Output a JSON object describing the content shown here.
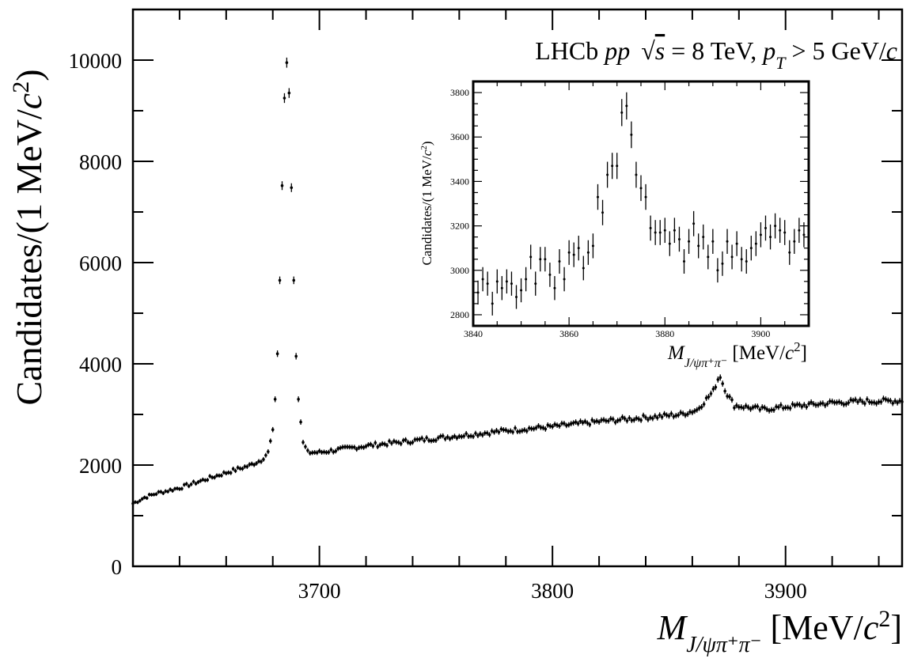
{
  "chart_data": [
    {
      "id": "main",
      "type": "scatter",
      "title": "",
      "annotation": {
        "experiment": "LHCb",
        "collision": "pp",
        "energy_prefix": "√",
        "energy_var": "s",
        "energy_value": " = 8 TeV,",
        "pt_var": "p",
        "pt_sub": "T",
        "pt_value": " > 5 GeV/",
        "pt_unit_var": "c"
      },
      "ylabel": "Candidates/(1 MeV/c 2)",
      "ylabel_parts": {
        "prefix": "Candidates/(1 MeV/",
        "var": "c",
        "sup": "2",
        "suffix": ")"
      },
      "xlabel": "M J/ψπ+π− [MeV/c 2]",
      "xlabel_parts": {
        "var": "M",
        "sub": "J/ψπ⁺π⁻",
        "unit": " [MeV/",
        "unit_var": "c",
        "unit_sup": "2",
        "unit_close": "]"
      },
      "xlim": [
        3620,
        3950
      ],
      "ylim": [
        0,
        11000
      ],
      "x_ticks": [
        3700,
        3800,
        3900
      ],
      "x_tick_labels": [
        "3700",
        "3800",
        "3900"
      ],
      "y_ticks": [
        0,
        2000,
        4000,
        6000,
        8000,
        10000
      ],
      "y_tick_labels": [
        "0",
        "2000",
        "4000",
        "6000",
        "8000",
        "10000"
      ],
      "grid": false,
      "sampled_points": [
        [
          3620,
          1240
        ],
        [
          3625,
          1360
        ],
        [
          3630,
          1440
        ],
        [
          3640,
          1550
        ],
        [
          3650,
          1700
        ],
        [
          3660,
          1850
        ],
        [
          3670,
          1990
        ],
        [
          3675,
          2100
        ],
        [
          3678,
          2250
        ],
        [
          3680,
          2700
        ],
        [
          3681,
          3300
        ],
        [
          3682,
          4200
        ],
        [
          3683,
          5650
        ],
        [
          3684,
          7520
        ],
        [
          3685,
          9250
        ],
        [
          3686,
          9950
        ],
        [
          3687,
          9350
        ],
        [
          3688,
          7480
        ],
        [
          3689,
          5650
        ],
        [
          3690,
          4150
        ],
        [
          3691,
          3300
        ],
        [
          3692,
          2850
        ],
        [
          3693,
          2450
        ],
        [
          3695,
          2250
        ],
        [
          3700,
          2250
        ],
        [
          3720,
          2380
        ],
        [
          3740,
          2480
        ],
        [
          3760,
          2580
        ],
        [
          3780,
          2680
        ],
        [
          3800,
          2760
        ],
        [
          3820,
          2860
        ],
        [
          3840,
          2940
        ],
        [
          3855,
          3000
        ],
        [
          3862,
          3090
        ],
        [
          3866,
          3300
        ],
        [
          3869,
          3460
        ],
        [
          3871,
          3700
        ],
        [
          3872,
          3760
        ],
        [
          3873,
          3620
        ],
        [
          3875,
          3400
        ],
        [
          3878,
          3180
        ],
        [
          3890,
          3100
        ],
        [
          3900,
          3150
        ],
        [
          3920,
          3230
        ],
        [
          3935,
          3260
        ],
        [
          3950,
          3270
        ]
      ]
    },
    {
      "id": "inset",
      "type": "scatter",
      "ylabel": "Candidates/(1 MeV/c 2)",
      "ylabel_parts": {
        "prefix": "Candidates/(1 MeV/",
        "var": "c",
        "sup": "2",
        "suffix": ")"
      },
      "xlabel": "M J/ψπ+π− [MeV/c 2]",
      "xlim": [
        3840,
        3910
      ],
      "ylim": [
        2750,
        3850
      ],
      "x_ticks": [
        3840,
        3860,
        3880,
        3900
      ],
      "x_tick_labels": [
        "3840",
        "3860",
        "3880",
        "3900"
      ],
      "y_ticks": [
        2800,
        3000,
        3200,
        3400,
        3600,
        3800
      ],
      "y_tick_labels": [
        "2800",
        "3000",
        "3200",
        "3400",
        "3600",
        "3800"
      ],
      "grid": false,
      "x": [
        3840,
        3841,
        3842,
        3843,
        3844,
        3845,
        3846,
        3847,
        3848,
        3849,
        3850,
        3851,
        3852,
        3853,
        3854,
        3855,
        3856,
        3857,
        3858,
        3859,
        3860,
        3861,
        3862,
        3863,
        3864,
        3865,
        3866,
        3867,
        3868,
        3869,
        3870,
        3871,
        3872,
        3873,
        3874,
        3875,
        3876,
        3877,
        3878,
        3879,
        3880,
        3881,
        3882,
        3883,
        3884,
        3885,
        3886,
        3887,
        3888,
        3889,
        3890,
        3891,
        3892,
        3893,
        3894,
        3895,
        3896,
        3897,
        3898,
        3899,
        3900,
        3901,
        3902,
        3903,
        3904,
        3905,
        3906,
        3907,
        3908,
        3909
      ],
      "y": [
        2870,
        2900,
        2960,
        2940,
        2850,
        2950,
        2920,
        2950,
        2940,
        2880,
        2910,
        2960,
        3060,
        2940,
        3050,
        3050,
        2980,
        2920,
        3040,
        2960,
        3080,
        3070,
        3100,
        3010,
        3080,
        3110,
        3330,
        3260,
        3430,
        3470,
        3470,
        3710,
        3740,
        3610,
        3430,
        3370,
        3330,
        3190,
        3170,
        3170,
        3180,
        3120,
        3180,
        3140,
        3040,
        3130,
        3210,
        3110,
        3150,
        3060,
        3130,
        3000,
        3030,
        3130,
        3060,
        3120,
        3050,
        3040,
        3100,
        3120,
        3160,
        3190,
        3150,
        3200,
        3180,
        3170,
        3080,
        3130,
        3180,
        3160
      ]
    }
  ]
}
